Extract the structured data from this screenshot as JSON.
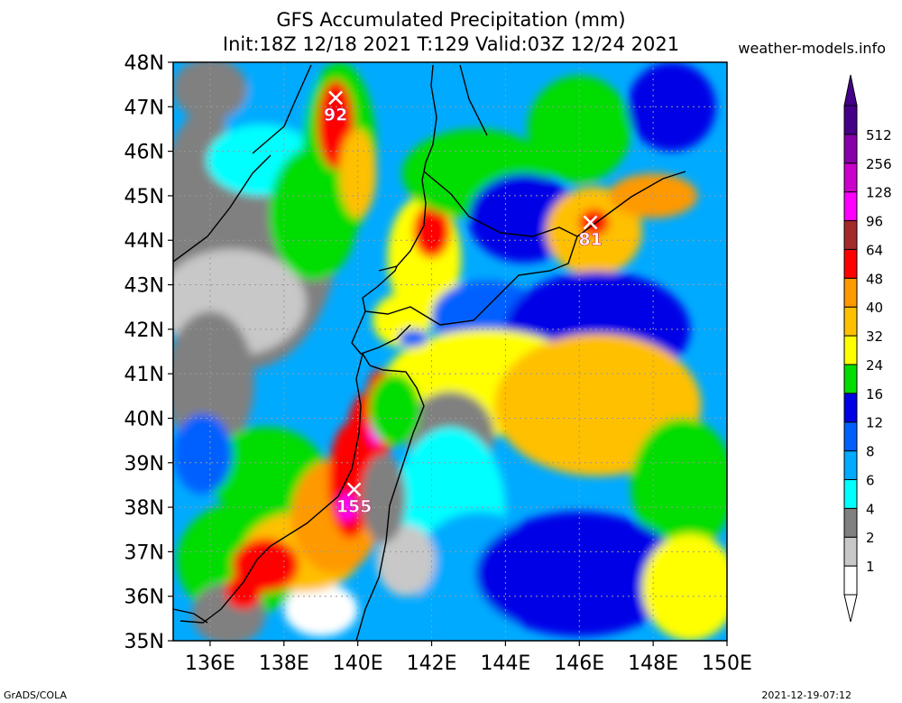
{
  "header": {
    "title_line1": "GFS Accumulated Precipitation (mm)",
    "title_line2": "Init:18Z 12/18 2021 T:129 Valid:03Z 12/24 2021",
    "site": "weather-models.info"
  },
  "footer": {
    "left": "GrADS/COLA",
    "right": "2021-12-19-07:12"
  },
  "chart_data": {
    "type": "heatmap",
    "variable": "Accumulated Precipitation (mm)",
    "xlim": [
      135,
      150
    ],
    "ylim": [
      35,
      48
    ],
    "x_ticks": [
      "136E",
      "138E",
      "140E",
      "142E",
      "144E",
      "146E",
      "148E",
      "150E"
    ],
    "x_tick_values": [
      136,
      138,
      140,
      142,
      144,
      146,
      148,
      150
    ],
    "y_ticks": [
      "35N",
      "36N",
      "37N",
      "38N",
      "39N",
      "40N",
      "41N",
      "42N",
      "43N",
      "44N",
      "45N",
      "46N",
      "47N",
      "48N"
    ],
    "y_tick_values": [
      35,
      36,
      37,
      38,
      39,
      40,
      41,
      42,
      43,
      44,
      45,
      46,
      47,
      48
    ],
    "colorbar": {
      "levels": [
        "1",
        "2",
        "4",
        "6",
        "8",
        "12",
        "16",
        "24",
        "32",
        "40",
        "48",
        "64",
        "96",
        "128",
        "256",
        "512"
      ],
      "colors": [
        "#ffffff",
        "#c8c8c8",
        "#808080",
        "#00ffff",
        "#00aaff",
        "#0060ff",
        "#0000e6",
        "#00dd00",
        "#ffff00",
        "#ffc000",
        "#ff9900",
        "#ff0000",
        "#a52a2a",
        "#ff00ff",
        "#cc00cc",
        "#8800aa",
        "#440088"
      ]
    },
    "maxima": [
      {
        "label": "92",
        "lon": 139.4,
        "lat": 47.2
      },
      {
        "label": "81",
        "lon": 146.3,
        "lat": 44.4
      },
      {
        "label": "155",
        "lon": 139.9,
        "lat": 38.4
      }
    ]
  }
}
